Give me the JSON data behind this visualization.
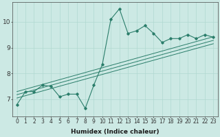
{
  "xlabel": "Humidex (Indice chaleur)",
  "x_data": [
    0,
    1,
    2,
    3,
    4,
    5,
    6,
    7,
    8,
    9,
    10,
    11,
    12,
    13,
    14,
    15,
    16,
    17,
    18,
    19,
    20,
    21,
    22,
    23
  ],
  "y_main": [
    6.8,
    7.3,
    7.3,
    7.55,
    7.5,
    7.1,
    7.2,
    7.2,
    6.65,
    7.55,
    8.35,
    10.1,
    10.5,
    9.55,
    9.65,
    9.85,
    9.55,
    9.2,
    9.35,
    9.35,
    9.5,
    9.35,
    9.5,
    9.4
  ],
  "trend1_y": [
    7.05,
    9.15
  ],
  "trend2_y": [
    7.18,
    9.28
  ],
  "trend3_y": [
    7.3,
    9.42
  ],
  "xlim": [
    -0.5,
    23.5
  ],
  "ylim": [
    6.35,
    10.75
  ],
  "yticks": [
    7,
    8,
    9,
    10
  ],
  "xticks": [
    0,
    1,
    2,
    3,
    4,
    5,
    6,
    7,
    8,
    9,
    10,
    11,
    12,
    13,
    14,
    15,
    16,
    17,
    18,
    19,
    20,
    21,
    22,
    23
  ],
  "line_color": "#2a7d6a",
  "bg_color": "#cce9e4",
  "grid_color": "#b0d8d0",
  "fig_bg": "#cce9e4",
  "tick_fontsize": 5.5,
  "xlabel_fontsize": 6.5
}
